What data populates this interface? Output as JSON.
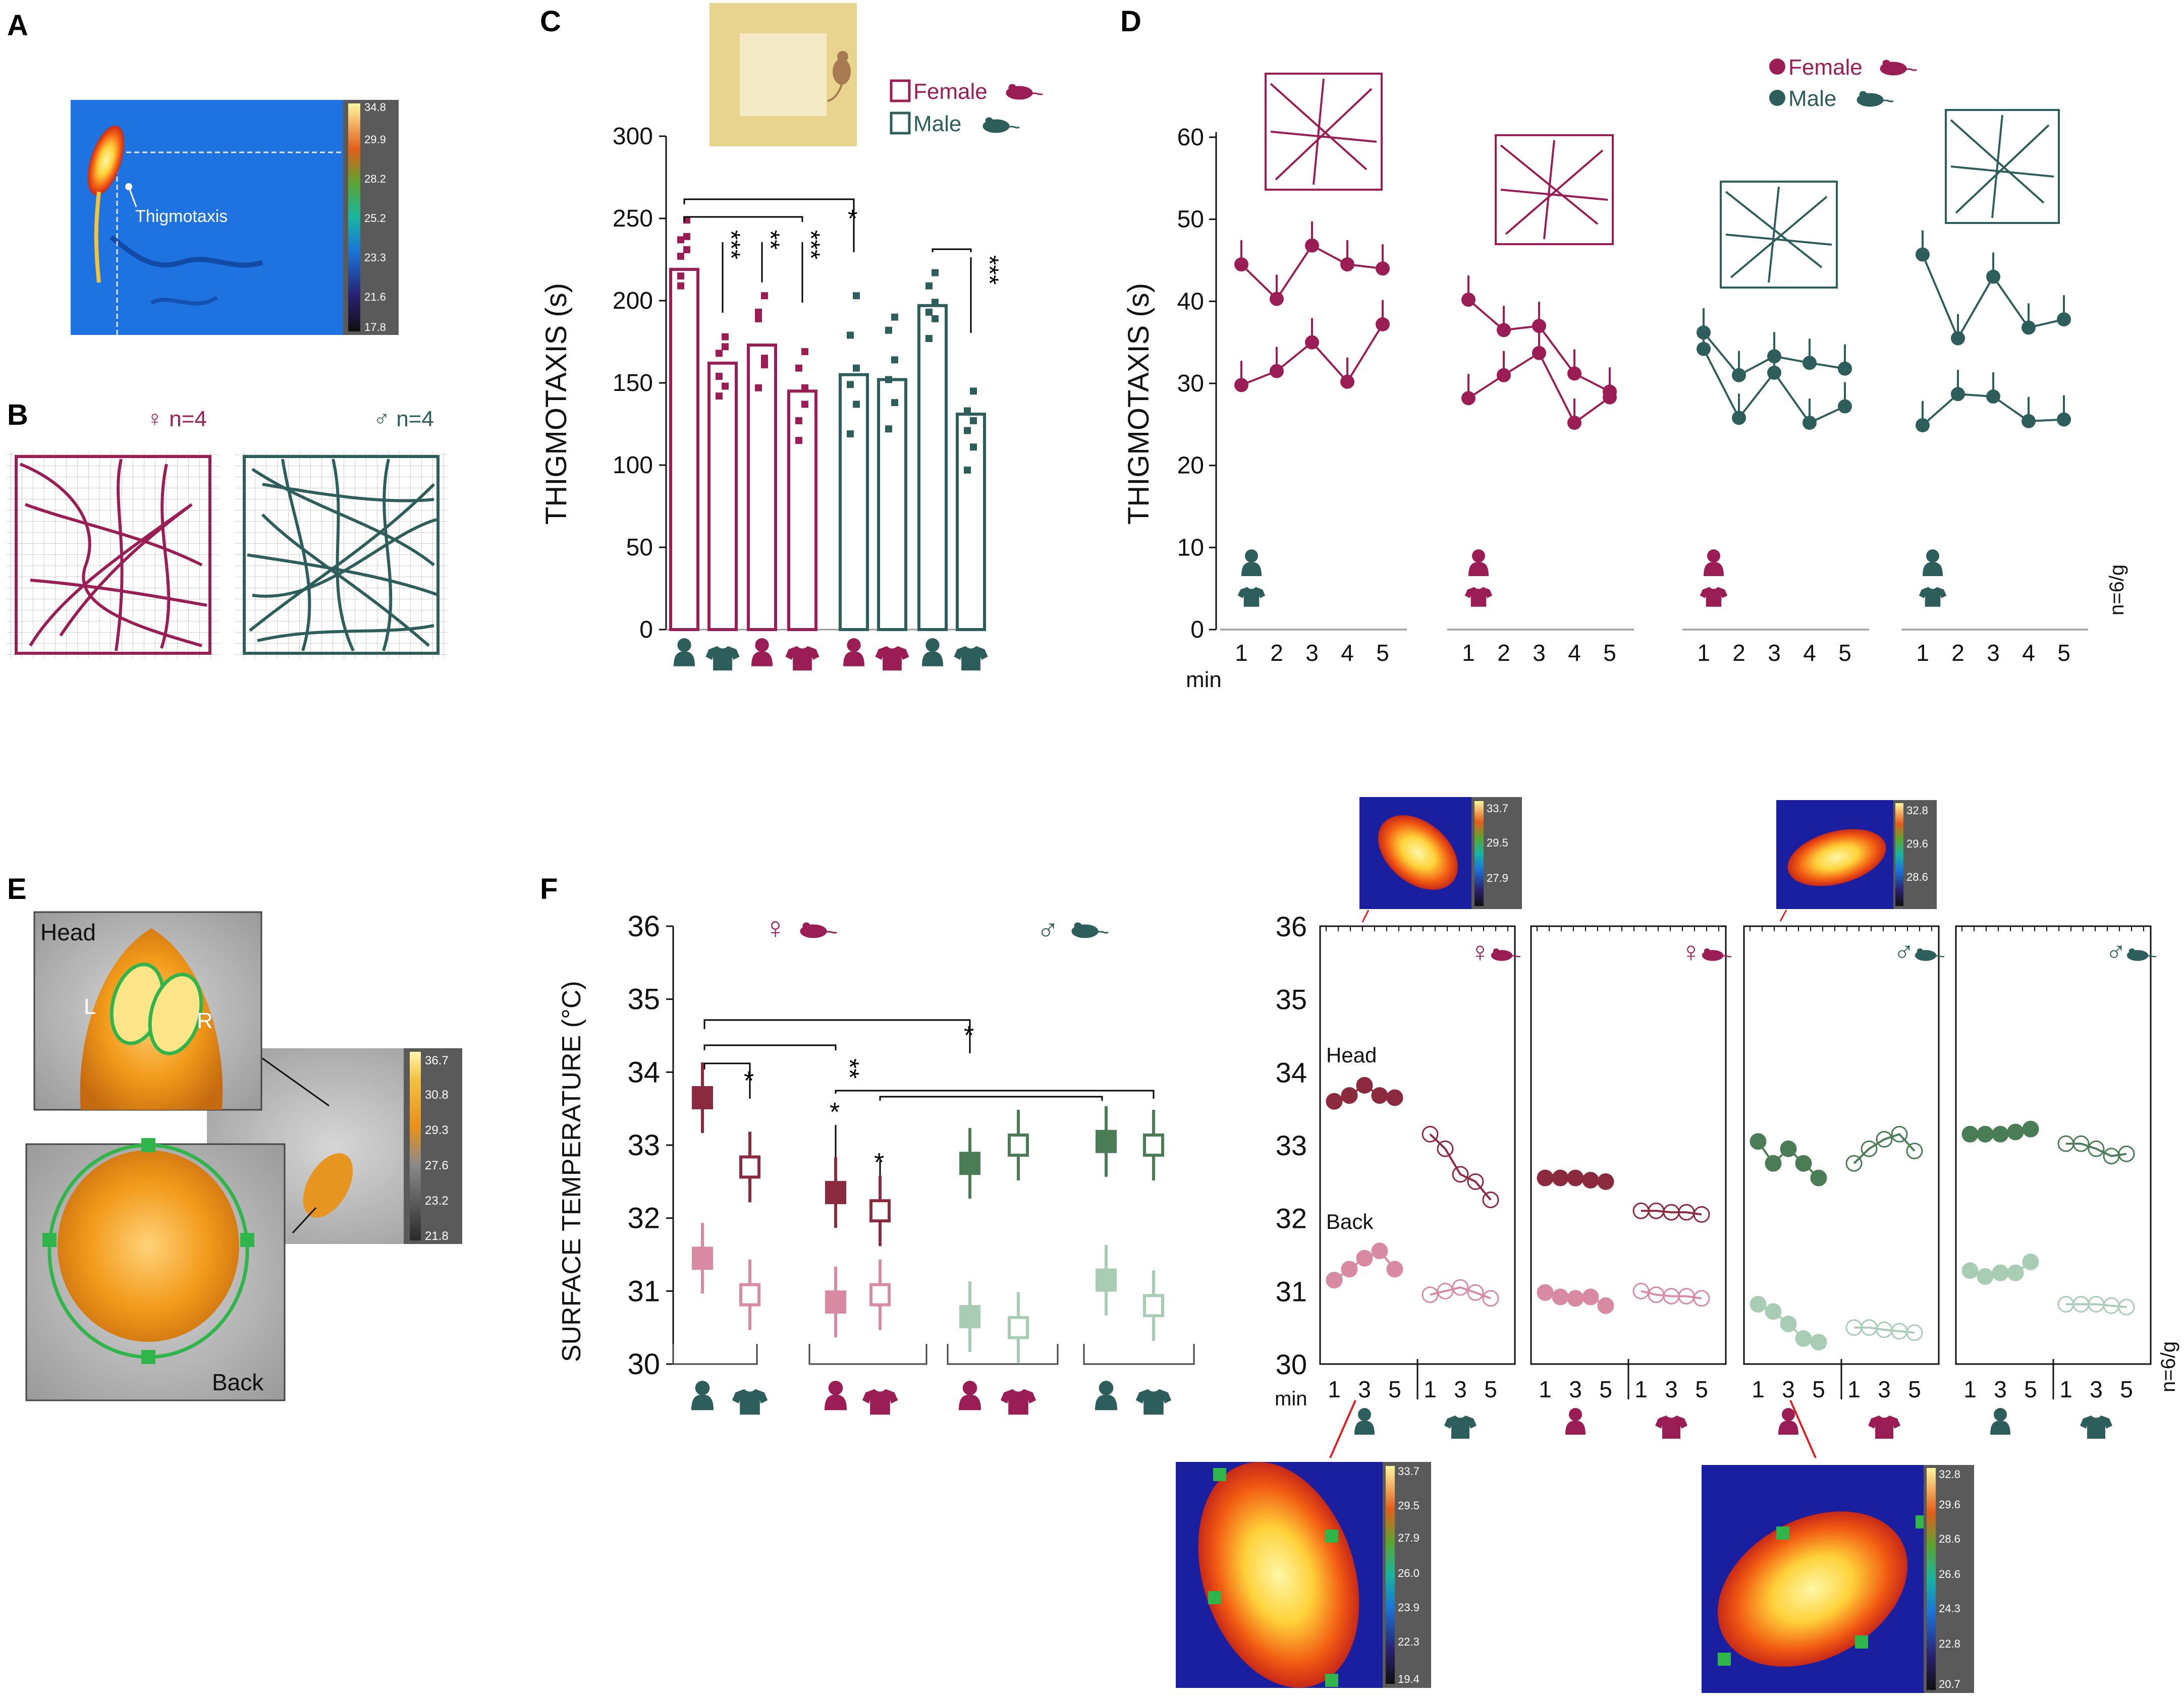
{
  "colors": {
    "female": "#9b1d55",
    "male": "#2e5e5c",
    "female_dark": "#8b2a3f",
    "female_light": "#d98aa3",
    "male_dark": "#4a7d55",
    "male_light": "#a9ccb5",
    "arena_fill": "#e8d48f",
    "arena_inner": "#f4ebc6"
  },
  "panel_labels": [
    "A",
    "B",
    "C",
    "D",
    "E",
    "F"
  ],
  "panelA": {
    "label": "Thigmotaxis",
    "colorbar_ticks": [
      "34.8",
      "29.9",
      "28.2",
      "25.2",
      "23.3",
      "21.6",
      "17.8"
    ]
  },
  "panelB": {
    "female_label": "♀ n=4",
    "male_label": "♂ n=4"
  },
  "panelE": {
    "head_label": "Head",
    "back_label": "Back",
    "left_label": "L",
    "right_label": "R",
    "colorbar_ticks": [
      "36.7",
      "30.8",
      "29.3",
      "27.6",
      "23.2",
      "21.8"
    ]
  },
  "thermal_insets": {
    "top_left_ticks": [
      "33.7",
      "29.5",
      "27.9"
    ],
    "top_right_ticks": [
      "32.8",
      "29.6",
      "28.6"
    ],
    "bottom_left_ticks": [
      "33.7",
      "29.5",
      "27.9",
      "26.0",
      "23.9",
      "22.3",
      "19.4"
    ],
    "bottom_right_ticks": [
      "32.8",
      "29.6",
      "28.6",
      "26.6",
      "24.3",
      "22.8",
      "20.7"
    ]
  },
  "chart_data": [
    {
      "id": "C",
      "type": "bar",
      "ylabel": "THIGMOTAXIS (s)",
      "ylim": [
        0,
        300
      ],
      "yticks": [
        "0",
        "50",
        "100",
        "150",
        "200",
        "250",
        "300"
      ],
      "legend": [
        "Female",
        "Male"
      ],
      "categories": [
        "F: male stimulus",
        "F: male bedding",
        "F: female stimulus",
        "F: female bedding",
        "M: female stimulus",
        "M: female bedding",
        "M: male stimulus",
        "M: male bedding"
      ],
      "values": [
        219,
        162,
        173,
        145,
        155,
        152,
        197,
        131
      ],
      "significance": [
        "*",
        "***",
        "**",
        "***",
        "***"
      ]
    },
    {
      "id": "D",
      "type": "line",
      "ylabel": "THIGMOTAXIS (s)",
      "xlabel": "min",
      "ylim": [
        0,
        60
      ],
      "yticks": [
        "0",
        "10",
        "20",
        "30",
        "40",
        "50",
        "60"
      ],
      "x": [
        "1",
        "2",
        "3",
        "4",
        "5"
      ],
      "legend": [
        "Female",
        "Male"
      ],
      "note": "n=6/g",
      "groups": [
        {
          "sex": "Female",
          "series": [
            [
              44.5,
              40.3,
              46.8,
              44.5,
              44.0
            ],
            [
              29.8,
              31.5,
              35.0,
              30.2,
              37.2
            ]
          ]
        },
        {
          "sex": "Female",
          "series": [
            [
              40.2,
              36.5,
              37.0,
              31.2,
              29.0
            ],
            [
              28.2,
              31.0,
              33.7,
              25.2,
              28.3
            ]
          ]
        },
        {
          "sex": "Male",
          "series": [
            [
              36.2,
              31.0,
              33.3,
              32.5,
              31.8
            ],
            [
              34.2,
              25.8,
              31.3,
              25.2,
              27.2
            ]
          ]
        },
        {
          "sex": "Male",
          "series": [
            [
              45.7,
              35.5,
              43.0,
              36.8,
              37.8
            ],
            [
              24.9,
              28.7,
              28.4,
              25.4,
              25.6
            ]
          ]
        }
      ]
    },
    {
      "id": "F-left",
      "type": "scatter",
      "ylabel": "SURFACE TEMPERATURE (°C)",
      "ylim": [
        30,
        36
      ],
      "yticks": [
        "30",
        "31",
        "32",
        "33",
        "34",
        "35",
        "36"
      ],
      "group_labels": [
        "♀",
        "♂"
      ],
      "categories": [
        "F: male stimulus",
        "F: male bedding",
        "F: female stimulus",
        "F: female bedding",
        "M: female stimulus",
        "M: female bedding",
        "M: male stimulus",
        "M: male bedding"
      ],
      "series": [
        {
          "name": "Head",
          "values": [
            33.65,
            32.7,
            32.35,
            32.1,
            32.75,
            33.0,
            33.05,
            33.0
          ]
        },
        {
          "name": "Back",
          "values": [
            31.45,
            30.95,
            30.85,
            30.95,
            30.65,
            30.5,
            31.15,
            30.8
          ]
        }
      ],
      "significance": [
        "*",
        "**",
        "*",
        "*",
        "*"
      ]
    },
    {
      "id": "F-right",
      "type": "line",
      "ylim": [
        30,
        36
      ],
      "yticks": [
        "30",
        "31",
        "32",
        "33",
        "34",
        "35",
        "36"
      ],
      "xlabel": "min",
      "x": [
        "1",
        "3",
        "5"
      ],
      "series_labels": [
        "Head",
        "Back"
      ],
      "note": "n=6/g",
      "panels": [
        {
          "sex": "♀",
          "head_filled": [
            33.6,
            33.68,
            33.82,
            33.68,
            33.65
          ],
          "head_open": [
            33.15,
            32.95,
            32.6,
            32.5,
            32.25
          ],
          "back_filled": [
            31.15,
            31.3,
            31.45,
            31.55,
            31.3
          ],
          "back_open": [
            30.95,
            31.0,
            31.05,
            30.98,
            30.9
          ]
        },
        {
          "sex": "♀",
          "head_filled": [
            32.55,
            32.55,
            32.55,
            32.52,
            32.5
          ],
          "head_open": [
            32.1,
            32.1,
            32.08,
            32.08,
            32.05
          ],
          "back_filled": [
            30.98,
            30.92,
            30.9,
            30.92,
            30.8
          ],
          "back_open": [
            31.0,
            30.95,
            30.93,
            30.93,
            30.9
          ]
        },
        {
          "sex": "♂",
          "head_filled": [
            33.05,
            32.75,
            32.95,
            32.75,
            32.55
          ],
          "head_open": [
            32.75,
            32.95,
            33.08,
            33.15,
            32.92
          ],
          "back_filled": [
            30.82,
            30.72,
            30.55,
            30.35,
            30.3
          ],
          "back_open": [
            30.5,
            30.5,
            30.47,
            30.45,
            30.43
          ]
        },
        {
          "sex": "♂",
          "head_filled": [
            33.15,
            33.15,
            33.15,
            33.18,
            33.22
          ],
          "head_open": [
            33.02,
            33.02,
            32.95,
            32.85,
            32.88
          ],
          "back_filled": [
            31.28,
            31.2,
            31.25,
            31.25,
            31.4
          ],
          "back_open": [
            30.82,
            30.82,
            30.82,
            30.8,
            30.78
          ]
        }
      ]
    }
  ]
}
